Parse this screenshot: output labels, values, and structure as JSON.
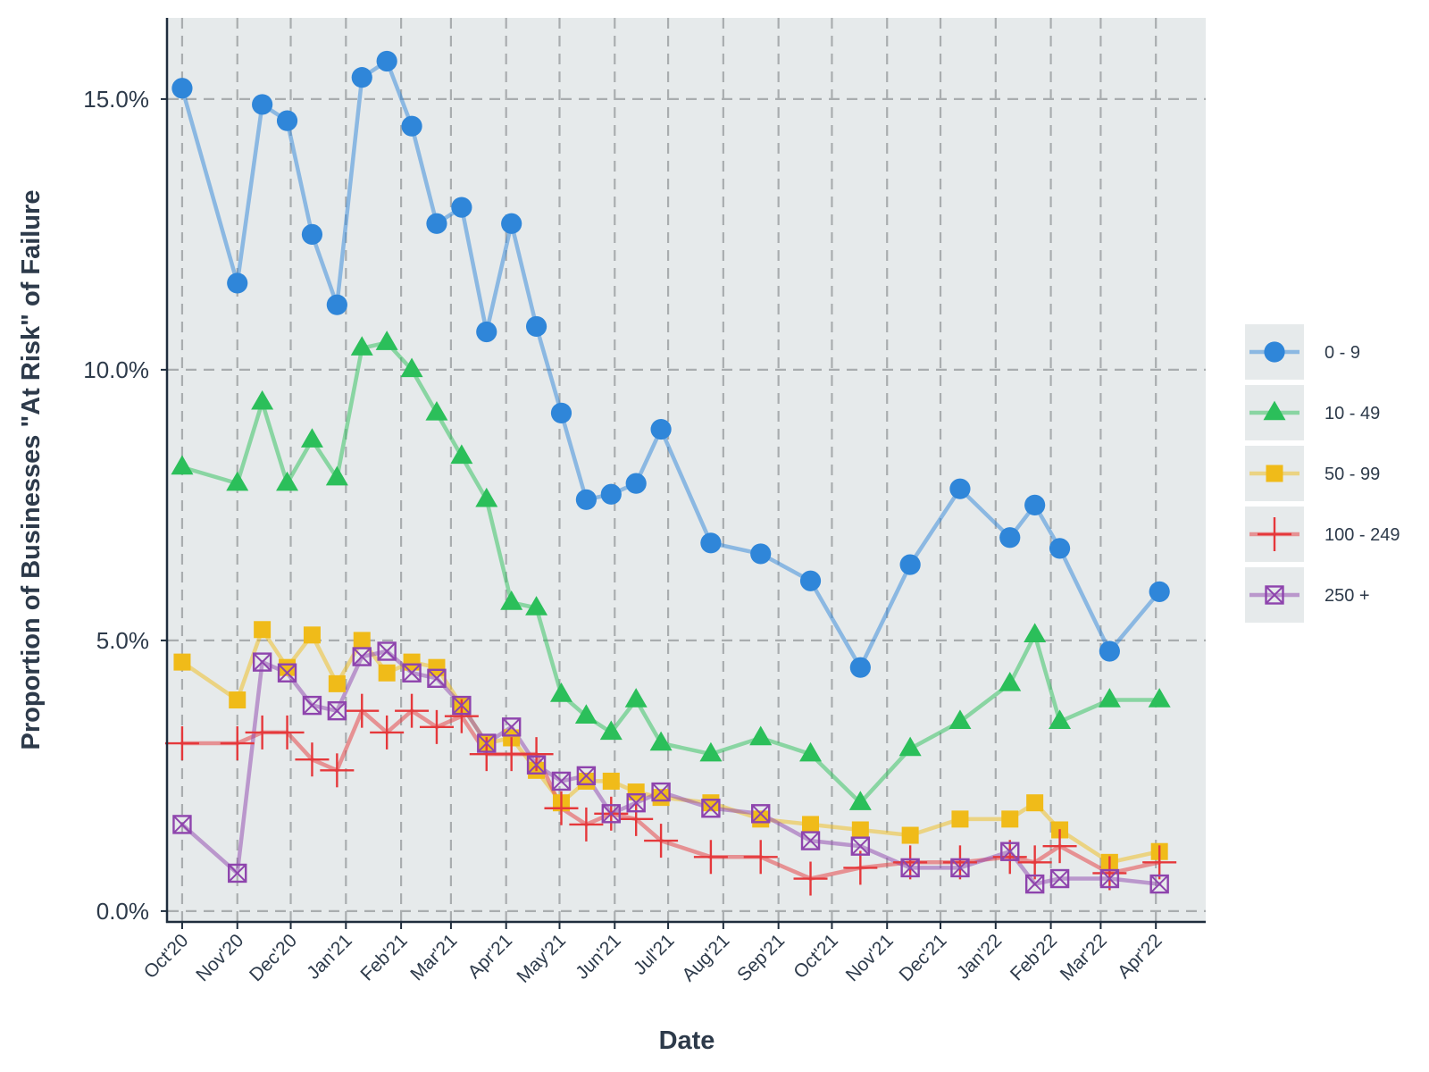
{
  "chart_data": {
    "type": "line",
    "title": "",
    "xlabel": "Date",
    "ylabel": "Proportion of Businesses \"At Risk\" of Failure",
    "ylim": [
      -0.2,
      16.5
    ],
    "y_ticks": [
      {
        "value": 0,
        "label": "0.0%"
      },
      {
        "value": 5,
        "label": "5.0%"
      },
      {
        "value": 10,
        "label": "10.0%"
      },
      {
        "value": 15,
        "label": "15.0%"
      }
    ],
    "x_ticks": [
      {
        "date": "2020-10-01",
        "label": "Oct'20"
      },
      {
        "date": "2020-11-01",
        "label": "Nov'20"
      },
      {
        "date": "2020-12-01",
        "label": "Dec'20"
      },
      {
        "date": "2021-01-01",
        "label": "Jan'21"
      },
      {
        "date": "2021-02-01",
        "label": "Feb'21"
      },
      {
        "date": "2021-03-01",
        "label": "Mar'21"
      },
      {
        "date": "2021-04-01",
        "label": "Apr'21"
      },
      {
        "date": "2021-05-01",
        "label": "May'21"
      },
      {
        "date": "2021-06-01",
        "label": "Jun'21"
      },
      {
        "date": "2021-07-01",
        "label": "Jul'21"
      },
      {
        "date": "2021-08-01",
        "label": "Aug'21"
      },
      {
        "date": "2021-09-01",
        "label": "Sep'21"
      },
      {
        "date": "2021-10-01",
        "label": "Oct'21"
      },
      {
        "date": "2021-11-01",
        "label": "Nov'21"
      },
      {
        "date": "2021-12-01",
        "label": "Dec'21"
      },
      {
        "date": "2022-01-01",
        "label": "Jan'22"
      },
      {
        "date": "2022-02-01",
        "label": "Feb'22"
      },
      {
        "date": "2022-03-01",
        "label": "Mar'22"
      },
      {
        "date": "2022-04-01",
        "label": "Apr'22"
      }
    ],
    "x_range": [
      "2020-09-23",
      "2022-04-29"
    ],
    "grid": "dashed major gridlines",
    "panel_background": "#e6eaeb",
    "legend_position": "right",
    "series": [
      {
        "name": "0 - 9",
        "marker": "circle",
        "color": "#2f86d9",
        "points": [
          {
            "x": "2020-10-01",
            "y": 15.2
          },
          {
            "x": "2020-11-01",
            "y": 11.6
          },
          {
            "x": "2020-11-15",
            "y": 14.9
          },
          {
            "x": "2020-11-29",
            "y": 14.6
          },
          {
            "x": "2020-12-13",
            "y": 12.5
          },
          {
            "x": "2020-12-27",
            "y": 11.2
          },
          {
            "x": "2021-01-10",
            "y": 15.4
          },
          {
            "x": "2021-01-24",
            "y": 15.7
          },
          {
            "x": "2021-02-07",
            "y": 14.5
          },
          {
            "x": "2021-02-21",
            "y": 12.7
          },
          {
            "x": "2021-03-07",
            "y": 13.0
          },
          {
            "x": "2021-03-21",
            "y": 10.7
          },
          {
            "x": "2021-04-04",
            "y": 12.7
          },
          {
            "x": "2021-04-18",
            "y": 10.8
          },
          {
            "x": "2021-05-02",
            "y": 9.2
          },
          {
            "x": "2021-05-16",
            "y": 7.6
          },
          {
            "x": "2021-05-30",
            "y": 7.7
          },
          {
            "x": "2021-06-13",
            "y": 7.9
          },
          {
            "x": "2021-06-27",
            "y": 8.9
          },
          {
            "x": "2021-07-25",
            "y": 6.8
          },
          {
            "x": "2021-08-22",
            "y": 6.6
          },
          {
            "x": "2021-09-19",
            "y": 6.1
          },
          {
            "x": "2021-10-17",
            "y": 4.5
          },
          {
            "x": "2021-11-14",
            "y": 6.4
          },
          {
            "x": "2021-12-12",
            "y": 7.8
          },
          {
            "x": "2022-01-09",
            "y": 6.9
          },
          {
            "x": "2022-01-23",
            "y": 7.5
          },
          {
            "x": "2022-02-06",
            "y": 6.7
          },
          {
            "x": "2022-03-06",
            "y": 4.8
          },
          {
            "x": "2022-04-03",
            "y": 5.9
          }
        ]
      },
      {
        "name": "10 - 49",
        "marker": "triangle",
        "color": "#2bbf5a",
        "points": [
          {
            "x": "2020-10-01",
            "y": 8.2
          },
          {
            "x": "2020-11-01",
            "y": 7.9
          },
          {
            "x": "2020-11-15",
            "y": 9.4
          },
          {
            "x": "2020-11-29",
            "y": 7.9
          },
          {
            "x": "2020-12-13",
            "y": 8.7
          },
          {
            "x": "2020-12-27",
            "y": 8.0
          },
          {
            "x": "2021-01-10",
            "y": 10.4
          },
          {
            "x": "2021-01-24",
            "y": 10.5
          },
          {
            "x": "2021-02-07",
            "y": 10.0
          },
          {
            "x": "2021-02-21",
            "y": 9.2
          },
          {
            "x": "2021-03-07",
            "y": 8.4
          },
          {
            "x": "2021-03-21",
            "y": 7.6
          },
          {
            "x": "2021-04-04",
            "y": 5.7
          },
          {
            "x": "2021-04-18",
            "y": 5.6
          },
          {
            "x": "2021-05-02",
            "y": 4.0
          },
          {
            "x": "2021-05-16",
            "y": 3.6
          },
          {
            "x": "2021-05-30",
            "y": 3.3
          },
          {
            "x": "2021-06-13",
            "y": 3.9
          },
          {
            "x": "2021-06-27",
            "y": 3.1
          },
          {
            "x": "2021-07-25",
            "y": 2.9
          },
          {
            "x": "2021-08-22",
            "y": 3.2
          },
          {
            "x": "2021-09-19",
            "y": 2.9
          },
          {
            "x": "2021-10-17",
            "y": 2.0
          },
          {
            "x": "2021-11-14",
            "y": 3.0
          },
          {
            "x": "2021-12-12",
            "y": 3.5
          },
          {
            "x": "2022-01-09",
            "y": 4.2
          },
          {
            "x": "2022-01-23",
            "y": 5.1
          },
          {
            "x": "2022-02-06",
            "y": 3.5
          },
          {
            "x": "2022-03-06",
            "y": 3.9
          },
          {
            "x": "2022-04-03",
            "y": 3.9
          }
        ]
      },
      {
        "name": "50 - 99",
        "marker": "square",
        "color": "#f0bb19",
        "points": [
          {
            "x": "2020-10-01",
            "y": 4.6
          },
          {
            "x": "2020-11-01",
            "y": 3.9
          },
          {
            "x": "2020-11-15",
            "y": 5.2
          },
          {
            "x": "2020-11-29",
            "y": 4.5
          },
          {
            "x": "2020-12-13",
            "y": 5.1
          },
          {
            "x": "2020-12-27",
            "y": 4.2
          },
          {
            "x": "2021-01-10",
            "y": 5.0
          },
          {
            "x": "2021-01-24",
            "y": 4.4
          },
          {
            "x": "2021-02-07",
            "y": 4.6
          },
          {
            "x": "2021-02-21",
            "y": 4.5
          },
          {
            "x": "2021-03-07",
            "y": 3.8
          },
          {
            "x": "2021-03-21",
            "y": 3.1
          },
          {
            "x": "2021-04-04",
            "y": 3.2
          },
          {
            "x": "2021-04-18",
            "y": 2.6
          },
          {
            "x": "2021-05-02",
            "y": 2.0
          },
          {
            "x": "2021-05-16",
            "y": 2.4
          },
          {
            "x": "2021-05-30",
            "y": 2.4
          },
          {
            "x": "2021-06-13",
            "y": 2.2
          },
          {
            "x": "2021-06-27",
            "y": 2.1
          },
          {
            "x": "2021-07-25",
            "y": 2.0
          },
          {
            "x": "2021-08-22",
            "y": 1.7
          },
          {
            "x": "2021-09-19",
            "y": 1.6
          },
          {
            "x": "2021-10-17",
            "y": 1.5
          },
          {
            "x": "2021-11-14",
            "y": 1.4
          },
          {
            "x": "2021-12-12",
            "y": 1.7
          },
          {
            "x": "2022-01-09",
            "y": 1.7
          },
          {
            "x": "2022-01-23",
            "y": 2.0
          },
          {
            "x": "2022-02-06",
            "y": 1.5
          },
          {
            "x": "2022-03-06",
            "y": 0.9
          },
          {
            "x": "2022-04-03",
            "y": 1.1
          }
        ]
      },
      {
        "name": "100 - 249",
        "marker": "cross",
        "color": "#e5383b",
        "points": [
          {
            "x": "2020-10-01",
            "y": 3.1
          },
          {
            "x": "2020-11-01",
            "y": 3.1
          },
          {
            "x": "2020-11-15",
            "y": 3.3
          },
          {
            "x": "2020-11-29",
            "y": 3.3
          },
          {
            "x": "2020-12-13",
            "y": 2.8
          },
          {
            "x": "2020-12-27",
            "y": 2.6
          },
          {
            "x": "2021-01-10",
            "y": 3.7
          },
          {
            "x": "2021-01-24",
            "y": 3.3
          },
          {
            "x": "2021-02-07",
            "y": 3.7
          },
          {
            "x": "2021-02-21",
            "y": 3.4
          },
          {
            "x": "2021-03-07",
            "y": 3.6
          },
          {
            "x": "2021-03-21",
            "y": 2.9
          },
          {
            "x": "2021-04-04",
            "y": 2.9
          },
          {
            "x": "2021-04-18",
            "y": 2.9
          },
          {
            "x": "2021-05-02",
            "y": 1.9
          },
          {
            "x": "2021-05-16",
            "y": 1.6
          },
          {
            "x": "2021-05-30",
            "y": 1.8
          },
          {
            "x": "2021-06-13",
            "y": 1.7
          },
          {
            "x": "2021-06-27",
            "y": 1.3
          },
          {
            "x": "2021-07-25",
            "y": 1.0
          },
          {
            "x": "2021-08-22",
            "y": 1.0
          },
          {
            "x": "2021-09-19",
            "y": 0.6
          },
          {
            "x": "2021-10-17",
            "y": 0.8
          },
          {
            "x": "2021-11-14",
            "y": 0.9
          },
          {
            "x": "2021-12-12",
            "y": 0.9
          },
          {
            "x": "2022-01-09",
            "y": 1.0
          },
          {
            "x": "2022-01-23",
            "y": 0.9
          },
          {
            "x": "2022-02-06",
            "y": 1.2
          },
          {
            "x": "2022-03-06",
            "y": 0.7
          },
          {
            "x": "2022-04-03",
            "y": 0.9
          }
        ]
      },
      {
        "name": "250 +",
        "marker": "square-x",
        "color": "#8e44ad",
        "points": [
          {
            "x": "2020-10-01",
            "y": 1.6
          },
          {
            "x": "2020-11-01",
            "y": 0.7
          },
          {
            "x": "2020-11-15",
            "y": 4.6
          },
          {
            "x": "2020-11-29",
            "y": 4.4
          },
          {
            "x": "2020-12-13",
            "y": 3.8
          },
          {
            "x": "2020-12-27",
            "y": 3.7
          },
          {
            "x": "2021-01-10",
            "y": 4.7
          },
          {
            "x": "2021-01-24",
            "y": 4.8
          },
          {
            "x": "2021-02-07",
            "y": 4.4
          },
          {
            "x": "2021-02-21",
            "y": 4.3
          },
          {
            "x": "2021-03-07",
            "y": 3.8
          },
          {
            "x": "2021-03-21",
            "y": 3.1
          },
          {
            "x": "2021-04-04",
            "y": 3.4
          },
          {
            "x": "2021-04-18",
            "y": 2.7
          },
          {
            "x": "2021-05-02",
            "y": 2.4
          },
          {
            "x": "2021-05-16",
            "y": 2.5
          },
          {
            "x": "2021-05-30",
            "y": 1.8
          },
          {
            "x": "2021-06-13",
            "y": 2.0
          },
          {
            "x": "2021-06-27",
            "y": 2.2
          },
          {
            "x": "2021-07-25",
            "y": 1.9
          },
          {
            "x": "2021-08-22",
            "y": 1.8
          },
          {
            "x": "2021-09-19",
            "y": 1.3
          },
          {
            "x": "2021-10-17",
            "y": 1.2
          },
          {
            "x": "2021-11-14",
            "y": 0.8
          },
          {
            "x": "2021-12-12",
            "y": 0.8
          },
          {
            "x": "2022-01-09",
            "y": 1.1
          },
          {
            "x": "2022-01-23",
            "y": 0.5
          },
          {
            "x": "2022-02-06",
            "y": 0.6
          },
          {
            "x": "2022-03-06",
            "y": 0.6
          },
          {
            "x": "2022-04-03",
            "y": 0.5
          }
        ]
      }
    ]
  }
}
